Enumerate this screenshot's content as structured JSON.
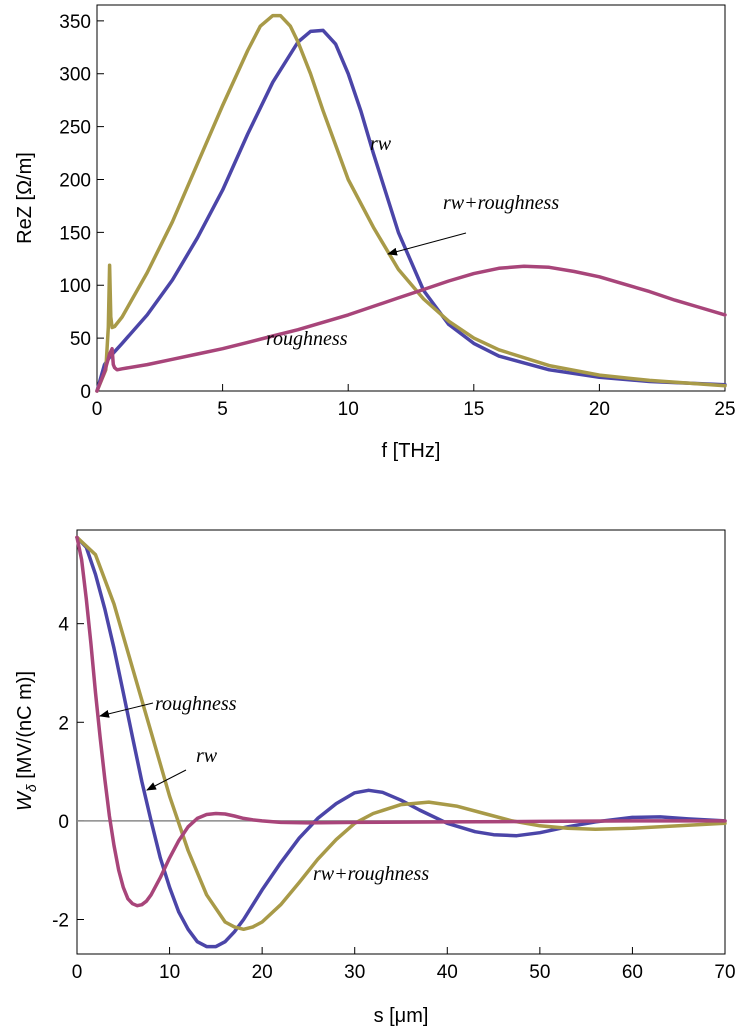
{
  "colors": {
    "rw": "#4b45a8",
    "rw_roughness": "#a89a48",
    "roughness": "#a8457a",
    "zero_line": "#8a8a8a"
  },
  "chart_data": [
    {
      "type": "line",
      "xlabel": "f [THz]",
      "ylabel": "ReZ [Ω/m]",
      "xlim": [
        0,
        25
      ],
      "ylim": [
        0,
        365
      ],
      "xticks": [
        0,
        5,
        10,
        15,
        20,
        25
      ],
      "yticks": [
        0,
        50,
        100,
        150,
        200,
        250,
        300,
        350
      ],
      "grid": false,
      "series": [
        {
          "name": "rw",
          "color_key": "rw",
          "x": [
            0.0,
            0.3,
            0.5,
            1.0,
            2.0,
            3.0,
            4.0,
            5.0,
            6.0,
            7.0,
            8.0,
            8.5,
            9.0,
            9.5,
            10.0,
            10.5,
            11.0,
            12.0,
            13.0,
            14.0,
            15.0,
            16.0,
            18.0,
            20.0,
            22.0,
            25.0
          ],
          "y": [
            0,
            25,
            32,
            45,
            72,
            105,
            145,
            190,
            243,
            292,
            330,
            340,
            341,
            328,
            300,
            265,
            225,
            150,
            95,
            63,
            45,
            33,
            20,
            13,
            9,
            6
          ]
        },
        {
          "name": "rw+roughness",
          "color_key": "rw_roughness",
          "x": [
            0.0,
            0.35,
            0.45,
            0.5,
            0.55,
            0.6,
            0.7,
            1.0,
            2.0,
            3.0,
            4.0,
            5.0,
            6.0,
            6.5,
            7.0,
            7.3,
            7.7,
            8.0,
            8.5,
            9.0,
            10.0,
            11.0,
            12.0,
            13.0,
            14.0,
            15.0,
            16.0,
            18.0,
            20.0,
            22.0,
            25.0
          ],
          "y": [
            0,
            20,
            60,
            119,
            70,
            60,
            61,
            70,
            112,
            160,
            215,
            270,
            322,
            345,
            355,
            355,
            345,
            330,
            300,
            265,
            200,
            155,
            115,
            87,
            66,
            50,
            39,
            24,
            15,
            10,
            5
          ]
        },
        {
          "name": "roughness",
          "color_key": "roughness",
          "x": [
            0.0,
            0.3,
            0.5,
            0.6,
            0.65,
            0.7,
            0.8,
            1.0,
            2.0,
            3.0,
            4.0,
            5.0,
            6.0,
            7.0,
            8.0,
            9.0,
            10.0,
            11.0,
            12.0,
            13.0,
            14.0,
            15.0,
            16.0,
            17.0,
            18.0,
            19.0,
            20.0,
            21.0,
            22.0,
            23.0,
            24.0,
            25.0
          ],
          "y": [
            0,
            18,
            35,
            40,
            25,
            22,
            20,
            21,
            25,
            30,
            35,
            40,
            46,
            52,
            58,
            65,
            72,
            80,
            88,
            96,
            104,
            111,
            116,
            118,
            117,
            113,
            108,
            101,
            94,
            86,
            79,
            72
          ]
        }
      ],
      "annotations": [
        {
          "text": "rw",
          "target": "rw"
        },
        {
          "text": "rw+roughness",
          "target": "rw_roughness",
          "arrow_to": [
            11.6,
            133
          ]
        },
        {
          "text": "roughness",
          "target": "roughness"
        }
      ]
    },
    {
      "type": "line",
      "xlabel": "s [μm]",
      "ylabel": "Wδ [MV/(nC m)]",
      "xlim": [
        0,
        70
      ],
      "ylim": [
        -2.7,
        5.9
      ],
      "xticks": [
        0,
        10,
        20,
        30,
        40,
        50,
        60,
        70
      ],
      "yticks": [
        -2,
        0,
        2,
        4
      ],
      "grid": false,
      "series": [
        {
          "name": "rw",
          "color_key": "rw",
          "x": [
            0,
            1,
            2,
            3,
            4,
            5,
            6,
            7,
            8,
            9,
            10,
            11,
            12,
            13,
            14,
            15,
            16,
            17,
            18,
            19,
            20,
            22,
            24,
            26,
            28,
            30,
            31.5,
            33,
            35,
            37,
            40,
            43,
            45,
            47.5,
            50,
            53,
            56,
            60,
            63,
            66,
            70
          ],
          "y": [
            5.75,
            5.55,
            5.0,
            4.3,
            3.5,
            2.6,
            1.7,
            0.8,
            0.0,
            -0.75,
            -1.35,
            -1.85,
            -2.2,
            -2.45,
            -2.55,
            -2.55,
            -2.45,
            -2.25,
            -2.0,
            -1.7,
            -1.4,
            -0.85,
            -0.35,
            0.05,
            0.35,
            0.57,
            0.62,
            0.58,
            0.42,
            0.22,
            -0.05,
            -0.22,
            -0.28,
            -0.3,
            -0.24,
            -0.12,
            -0.02,
            0.07,
            0.08,
            0.04,
            0.0
          ]
        },
        {
          "name": "rw+roughness",
          "color_key": "rw_roughness",
          "x": [
            0,
            2,
            4,
            6,
            8,
            10,
            12,
            14,
            16,
            17,
            18,
            19,
            20,
            22,
            24,
            26,
            28,
            30,
            32,
            35,
            38,
            41,
            44,
            47,
            50,
            53,
            56,
            60,
            65,
            70
          ],
          "y": [
            5.75,
            5.4,
            4.4,
            3.1,
            1.8,
            0.5,
            -0.6,
            -1.5,
            -2.05,
            -2.15,
            -2.2,
            -2.15,
            -2.05,
            -1.7,
            -1.25,
            -0.78,
            -0.38,
            -0.05,
            0.15,
            0.33,
            0.38,
            0.3,
            0.15,
            0.0,
            -0.1,
            -0.15,
            -0.17,
            -0.15,
            -0.1,
            -0.05
          ]
        },
        {
          "name": "roughness",
          "color_key": "roughness",
          "x": [
            0,
            0.5,
            1,
            1.5,
            2,
            2.5,
            3,
            3.5,
            4,
            4.5,
            5,
            5.5,
            6,
            6.5,
            7,
            7.5,
            8,
            9,
            10,
            11,
            12,
            13,
            14,
            15,
            16,
            17,
            18,
            19,
            20,
            22,
            25,
            30,
            40,
            50,
            60,
            70
          ],
          "y": [
            5.75,
            5.3,
            4.5,
            3.6,
            2.6,
            1.7,
            0.85,
            0.1,
            -0.5,
            -1.0,
            -1.35,
            -1.58,
            -1.68,
            -1.72,
            -1.7,
            -1.63,
            -1.5,
            -1.15,
            -0.75,
            -0.4,
            -0.12,
            0.05,
            0.13,
            0.15,
            0.14,
            0.1,
            0.05,
            0.02,
            0.0,
            -0.03,
            -0.04,
            -0.03,
            -0.02,
            -0.01,
            0.0,
            0.0
          ]
        }
      ],
      "zero_line": true,
      "annotations": [
        {
          "text": "roughness",
          "target": "roughness",
          "arrow_to": [
            2.3,
            2.3
          ]
        },
        {
          "text": "rw",
          "target": "rw",
          "arrow_to": [
            7.3,
            0.8
          ]
        },
        {
          "text": "rw+roughness",
          "target": "rw_roughness"
        }
      ]
    }
  ]
}
